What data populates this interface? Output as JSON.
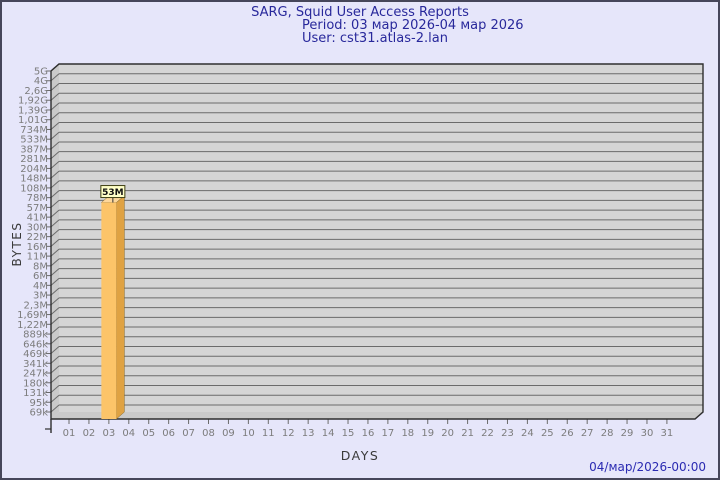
{
  "header": {
    "title": "SARG, Squid User Access Reports",
    "period": "Period: 03 мар 2026-04 мар 2026",
    "user": "User: cst31.atlas-2.lan"
  },
  "footer": {
    "timestamp": "04/мар/2026-00:00"
  },
  "chart_data": {
    "type": "bar",
    "title": "SARG, Squid User Access Reports",
    "subtitle_period": "Period: 03 мар 2026-04 мар 2026",
    "subtitle_user": "User: cst31.atlas-2.lan",
    "xlabel": "DAYS",
    "ylabel": "BYTES",
    "scale": "log",
    "grid": true,
    "style": "3d-bar",
    "x_categories": [
      "01",
      "02",
      "03",
      "04",
      "05",
      "06",
      "07",
      "08",
      "09",
      "10",
      "11",
      "12",
      "13",
      "14",
      "15",
      "16",
      "17",
      "18",
      "19",
      "20",
      "21",
      "22",
      "23",
      "24",
      "25",
      "26",
      "27",
      "28",
      "29",
      "30",
      "31"
    ],
    "y_tick_labels_top_to_bottom": [
      "5G",
      "4G",
      "2,6G",
      "1,92G",
      "1,39G",
      "1,01G",
      "734M",
      "533M",
      "387M",
      "281M",
      "204M",
      "148M",
      "108M",
      "78M",
      "57M",
      "41M",
      "30M",
      "22M",
      "16M",
      "11M",
      "8M",
      "6M",
      "4M",
      "3M",
      "2,3M",
      "1,69M",
      "1,22M",
      "889k",
      "646k",
      "469k",
      "341k",
      "247k",
      "180k",
      "131k",
      "95k",
      "69k"
    ],
    "bars": [
      {
        "day": "03",
        "value": 53000000,
        "value_label": "53M"
      }
    ],
    "colors": {
      "page_bg": "#E6E6FA",
      "title_text": "#28289B",
      "footer_text": "#2B2BB2",
      "plot_bg": "#D5D5D5",
      "wall_bg": "#CACACA",
      "gridline": "#6B6B6B",
      "frame": "#2E2E2E",
      "tick_label": "#7C7C7C",
      "axis_title": "#3A3A3A",
      "bar_front": "#FCC469",
      "bar_side": "#DFA243",
      "bar_top": "#FDD79B",
      "bar_edge": "#8A6A28",
      "value_box_bg": "#FFFFC8",
      "value_box_border": "#3F3F12",
      "value_box_text": "#111111"
    }
  }
}
